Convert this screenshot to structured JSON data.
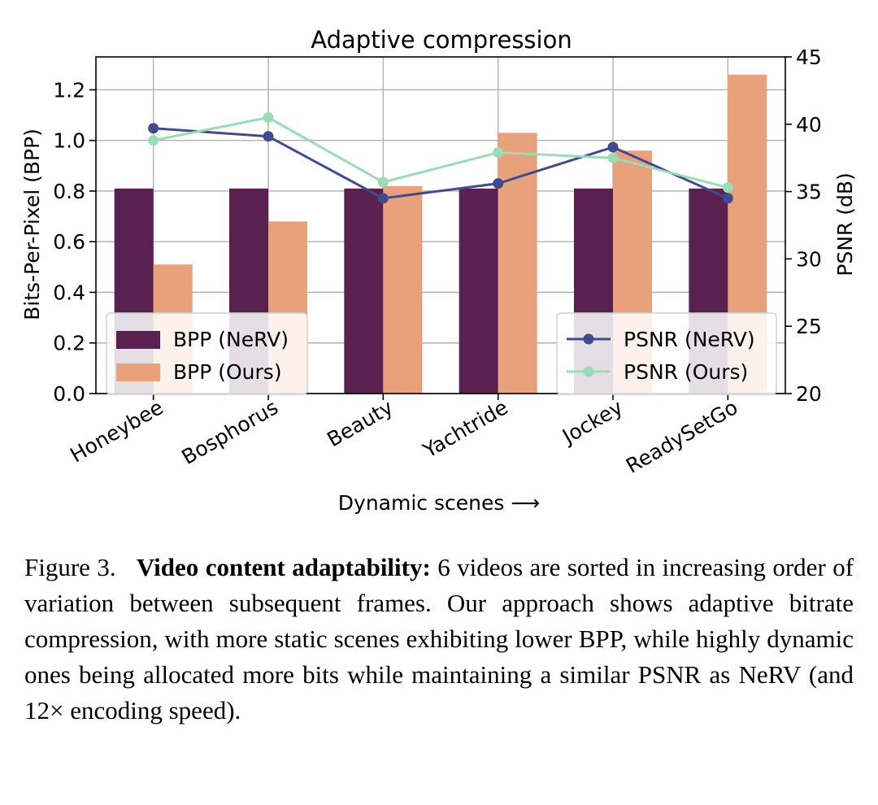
{
  "chart_data": {
    "type": "bar",
    "title": "Adaptive compression",
    "xlabel": "Dynamic scenes ⟶",
    "ylabel": "Bits-Per-Pixel (BPP)",
    "y2label": "PSNR (dB)",
    "categories": [
      "Honeybee",
      "Bosphorus",
      "Beauty",
      "Yachtride",
      "Jockey",
      "ReadySetGo"
    ],
    "ylim": [
      0,
      1.33
    ],
    "y2lim": [
      20,
      45
    ],
    "yticks": [
      "0.0",
      "0.2",
      "0.4",
      "0.6",
      "0.8",
      "1.0",
      "1.2"
    ],
    "y2ticks": [
      "20",
      "25",
      "30",
      "35",
      "40",
      "45"
    ],
    "grid": true,
    "series": [
      {
        "name": "BPP (NeRV)",
        "kind": "bar",
        "axis": "left",
        "color": "#5a2150",
        "values": [
          0.81,
          0.81,
          0.81,
          0.81,
          0.81,
          0.81
        ]
      },
      {
        "name": "BPP (Ours)",
        "kind": "bar",
        "axis": "left",
        "color": "#e9a17c",
        "values": [
          0.51,
          0.68,
          0.82,
          1.03,
          0.96,
          1.26
        ]
      },
      {
        "name": "PSNR (NeRV)",
        "kind": "line",
        "axis": "right",
        "color": "#414a8c",
        "values": [
          39.7,
          39.1,
          34.5,
          35.6,
          38.3,
          34.5
        ]
      },
      {
        "name": "PSNR (Ours)",
        "kind": "line",
        "axis": "right",
        "color": "#9bdcb6",
        "values": [
          38.8,
          40.5,
          35.7,
          37.9,
          37.5,
          35.3
        ]
      }
    ],
    "legend_left": "lower-left",
    "legend_right": "lower-right"
  },
  "caption": {
    "label": "Figure 3.",
    "bold": "Video content adaptability:",
    "text": "6 videos are sorted in increasing order of variation between subsequent frames. Our approach shows adaptive bitrate compression, with more static scenes exhibiting lower BPP, while highly dynamic ones being allocated more bits while maintaining a similar PSNR as NeRV (and 12× encoding speed)."
  }
}
